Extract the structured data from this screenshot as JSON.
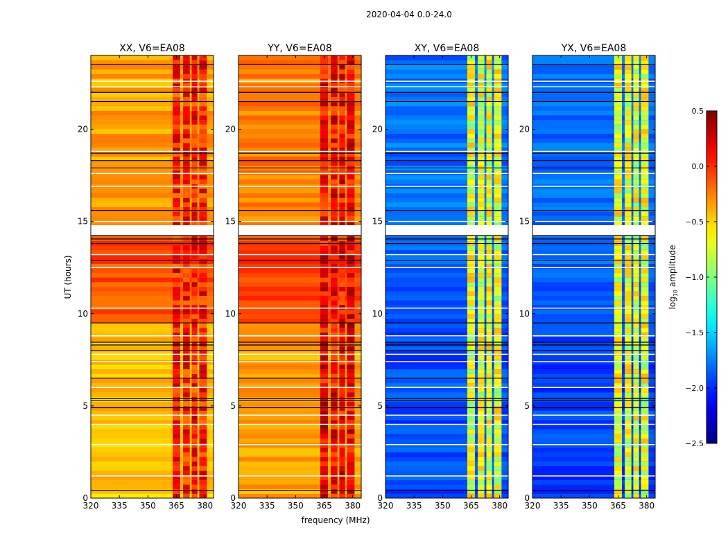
{
  "chart_data": {
    "type": "heatmap",
    "suptitle": "2020-04-04 0.0-24.0",
    "xlabel": "frequency (MHz)",
    "ylabel": "UT (hours)",
    "xlim": [
      320,
      384.5
    ],
    "ylim": [
      0,
      24
    ],
    "xticks": [
      "320",
      "335",
      "350",
      "365",
      "380"
    ],
    "yticks": [
      "0",
      "5",
      "10",
      "15",
      "20"
    ],
    "colorbar": {
      "label": "log10 amplitude",
      "label_main": "log",
      "label_sub": "10",
      "label_rest": " amplitude",
      "range": [
        -2.5,
        0.5
      ],
      "ticks": [
        "0.5",
        "0.0",
        "−0.5",
        "−1.0",
        "−1.5",
        "−2.0",
        "−2.5"
      ],
      "colormap": "jet"
    },
    "panels": [
      {
        "title": "XX, V6=EA08",
        "segments": [
          [
            0,
            9.5,
            -0.45
          ],
          [
            9.5,
            14.2,
            -0.1
          ],
          [
            14.8,
            24,
            -0.35
          ]
        ],
        "band_level": 0.05
      },
      {
        "title": "YY, V6=EA08",
        "segments": [
          [
            0,
            9.5,
            -0.35
          ],
          [
            9.5,
            14.2,
            -0.05
          ],
          [
            14.8,
            24,
            -0.25
          ]
        ],
        "band_level": 0.15
      },
      {
        "title": "XY, V6=EA08",
        "segments": [
          [
            0,
            9.5,
            -1.9
          ],
          [
            9.5,
            14.2,
            -1.85
          ],
          [
            14.8,
            24,
            -1.8
          ]
        ],
        "band_level": -0.7
      },
      {
        "title": "YX, V6=EA08",
        "segments": [
          [
            0,
            9.5,
            -1.95
          ],
          [
            9.5,
            14.2,
            -1.85
          ],
          [
            14.8,
            24,
            -1.8
          ]
        ],
        "band_level": -0.7
      }
    ],
    "bands_mhz": [
      [
        363,
        367
      ],
      [
        368.5,
        372
      ],
      [
        373,
        376
      ],
      [
        377,
        381
      ]
    ],
    "flag_gap_hours": [
      14.2,
      14.8
    ],
    "black_lines_hours": [
      0.4,
      4.9,
      5.3,
      5.4,
      6.5,
      8.0,
      8.3,
      8.45,
      9.5,
      12.9,
      13.8,
      14.05,
      14.25,
      15.6,
      17.9,
      18.3,
      18.7,
      21.5,
      22.0,
      23.5
    ],
    "white_lines_hours": [
      1.2,
      2.9,
      4.0,
      4.5,
      6.0,
      7.4,
      7.8,
      8.8,
      10.3,
      12.5,
      13.2,
      15.0,
      16.9,
      17.6,
      18.8,
      22.3,
      22.6
    ]
  }
}
